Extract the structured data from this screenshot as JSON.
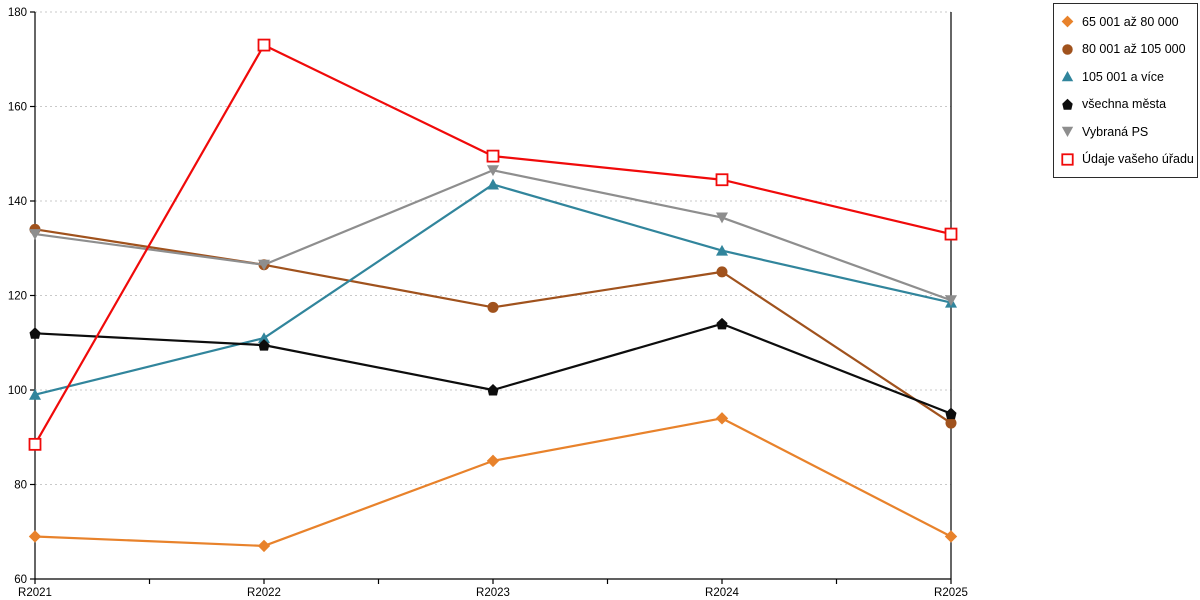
{
  "chart_data": {
    "type": "line",
    "title": "",
    "xlabel": "",
    "ylabel": "",
    "categories": [
      "R2021",
      "R2022",
      "R2023",
      "R2024",
      "R2025"
    ],
    "series": [
      {
        "name": "65 001 až 80 000",
        "color": "#E8822B",
        "marker": "diamond",
        "values": [
          69,
          67,
          85,
          94,
          69
        ]
      },
      {
        "name": "80 001 až 105 000",
        "color": "#A0521D",
        "marker": "circle",
        "values": [
          134,
          126.5,
          117.5,
          125,
          93
        ]
      },
      {
        "name": "105 001 a více",
        "color": "#31859C",
        "marker": "triangle-up",
        "values": [
          99,
          111,
          143.5,
          129.5,
          118.5
        ]
      },
      {
        "name": "všechna města",
        "color": "#0D0D0D",
        "marker": "pentagon",
        "values": [
          112,
          109.5,
          100,
          114,
          95
        ]
      },
      {
        "name": "Vybraná PS",
        "color": "#8E8E8E",
        "marker": "triangle-down",
        "values": [
          133,
          126.5,
          146.5,
          136.5,
          119
        ]
      },
      {
        "name": "Údaje vašeho úřadu",
        "color": "#F00A0A",
        "marker": "open-square",
        "values": [
          88.5,
          173,
          149.5,
          144.5,
          133
        ]
      }
    ],
    "ylim": [
      60,
      180
    ],
    "yticks": [
      60,
      80,
      100,
      120,
      140,
      160,
      180
    ],
    "grid": "horizontal-dashed",
    "legend_position": "top-right",
    "axis_color": "#000000",
    "grid_color": "#c9c9c9"
  }
}
